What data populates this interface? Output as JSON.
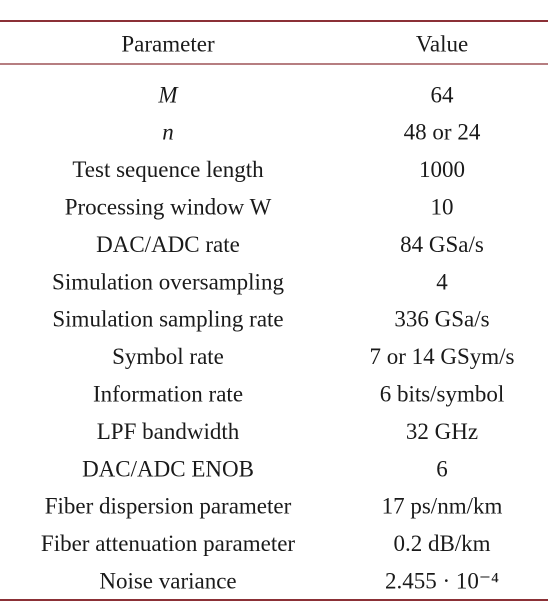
{
  "table": {
    "header": [
      "Parameter",
      "Value"
    ],
    "rows": [
      [
        "M",
        "64"
      ],
      [
        "n",
        "48 or 24"
      ],
      [
        "Test sequence length",
        "1000"
      ],
      [
        "Processing window W",
        "10"
      ],
      [
        "DAC/ADC rate",
        "84 GSa/s"
      ],
      [
        "Simulation oversampling",
        "4"
      ],
      [
        "Simulation sampling rate",
        "336 GSa/s"
      ],
      [
        "Symbol rate",
        "7 or 14 GSym/s"
      ],
      [
        "Information rate",
        "6 bits/symbol"
      ],
      [
        "LPF bandwidth",
        "32 GHz"
      ],
      [
        "DAC/ADC ENOB",
        "6"
      ],
      [
        "Fiber dispersion parameter",
        "17 ps/nm/km"
      ],
      [
        "Fiber attenuation parameter",
        "0.2 dB/km"
      ],
      [
        "Noise variance",
        "2.455 · 10⁻⁴"
      ]
    ]
  }
}
